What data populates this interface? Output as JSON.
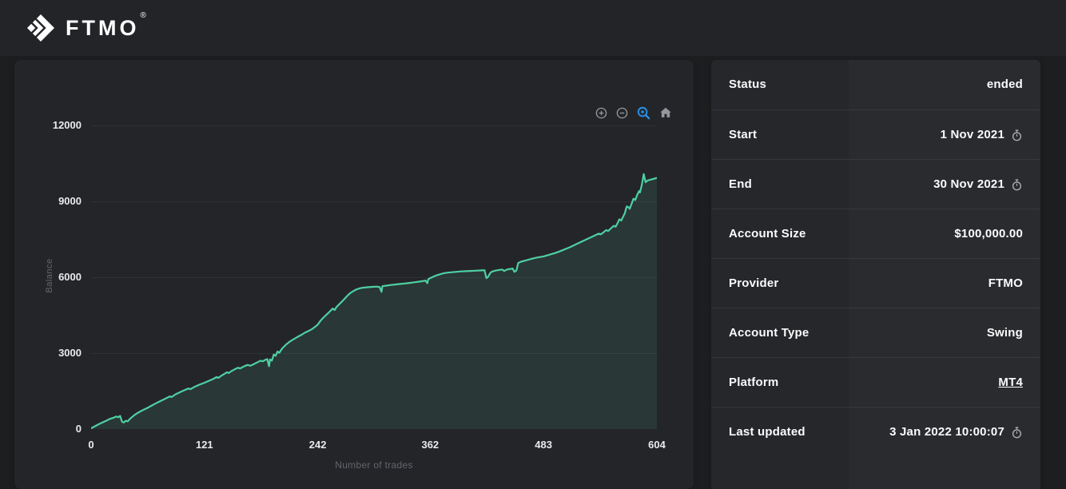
{
  "header": {
    "logo_text": "FTMO",
    "trademark": "®"
  },
  "colors": {
    "page_bg": "#1d1e20",
    "header_bg": "#232427",
    "card_bg": "#242529",
    "panel_label_bg": "#26272b",
    "panel_value_bg": "#2a2b2f",
    "line": "#4ed0a2",
    "fill": "rgba(79,209,165,0.11)",
    "active_tool_blue": "#2a97f3",
    "muted_text": "#63666b"
  },
  "chart": {
    "toolbar": {
      "icons": [
        {
          "name": "zoom-in-icon",
          "active": false
        },
        {
          "name": "zoom-out-icon",
          "active": false
        },
        {
          "name": "selection-zoom-icon",
          "active": true
        },
        {
          "name": "home-icon",
          "active": false
        }
      ]
    }
  },
  "chart_data": {
    "type": "area",
    "title": "",
    "xlabel": "Number of trades",
    "ylabel": "Balance",
    "xlim": [
      0,
      604
    ],
    "ylim": [
      0,
      12000
    ],
    "x_ticks": [
      0,
      121,
      242,
      362,
      483,
      604
    ],
    "y_ticks": [
      0,
      3000,
      6000,
      9000,
      12000
    ],
    "grid": "horizontal",
    "legend": "none",
    "series": [
      {
        "name": "Balance",
        "x": [
          0,
          4,
          8,
          12,
          16,
          20,
          24,
          27,
          29,
          31,
          33,
          35,
          37,
          39,
          42,
          46,
          50,
          55,
          60,
          65,
          70,
          75,
          80,
          84,
          86,
          90,
          95,
          100,
          104,
          106,
          110,
          115,
          120,
          125,
          130,
          134,
          136,
          139,
          142,
          145,
          147,
          150,
          154,
          157,
          159,
          163,
          167,
          170,
          174,
          178,
          181,
          183,
          186,
          188,
          190,
          191,
          193,
          195,
          197,
          199,
          201,
          204,
          208,
          212,
          216,
          220,
          224,
          228,
          232,
          236,
          240,
          242,
          245,
          248,
          252,
          255,
          258,
          260,
          262,
          265,
          268,
          271,
          274,
          277,
          280,
          283,
          286,
          290,
          295,
          300,
          305,
          308,
          310,
          311,
          315,
          320,
          325,
          330,
          335,
          340,
          345,
          350,
          354,
          357,
          359,
          360,
          362,
          365,
          368,
          372,
          376,
          380,
          385,
          390,
          395,
          400,
          405,
          410,
          415,
          420,
          422,
          424,
          426,
          428,
          432,
          436,
          439,
          441,
          444,
          447,
          450,
          452,
          454,
          456,
          459,
          463,
          467,
          471,
          475,
          479,
          483,
          487,
          491,
          495,
          499,
          503,
          507,
          511,
          515,
          519,
          523,
          527,
          531,
          535,
          539,
          542,
          544,
          547,
          550,
          552,
          555,
          558,
          560,
          562,
          564,
          566,
          568,
          570,
          571,
          572,
          574,
          575,
          577,
          579,
          581,
          583,
          585,
          586,
          588,
          590,
          591,
          592,
          594,
          597,
          600,
          604
        ],
        "y": [
          30,
          110,
          190,
          260,
          330,
          400,
          450,
          500,
          465,
          520,
          295,
          260,
          330,
          305,
          420,
          545,
          645,
          745,
          835,
          935,
          1035,
          1125,
          1215,
          1290,
          1265,
          1370,
          1460,
          1545,
          1605,
          1575,
          1660,
          1745,
          1815,
          1895,
          1975,
          2055,
          2025,
          2105,
          2175,
          2245,
          2215,
          2295,
          2375,
          2425,
          2395,
          2475,
          2535,
          2505,
          2575,
          2645,
          2705,
          2675,
          2735,
          2765,
          2485,
          2755,
          2705,
          2945,
          2895,
          3065,
          3015,
          3185,
          3335,
          3455,
          3545,
          3635,
          3715,
          3805,
          3875,
          3955,
          4065,
          4135,
          4285,
          4405,
          4545,
          4655,
          4765,
          4705,
          4825,
          4935,
          5045,
          5165,
          5285,
          5385,
          5455,
          5515,
          5555,
          5585,
          5605,
          5620,
          5630,
          5615,
          5425,
          5645,
          5670,
          5695,
          5715,
          5735,
          5755,
          5775,
          5800,
          5825,
          5850,
          5870,
          5765,
          5925,
          5965,
          6015,
          6065,
          6115,
          6155,
          6180,
          6200,
          6215,
          6230,
          6240,
          6250,
          6260,
          6270,
          6280,
          5965,
          6025,
          6165,
          6225,
          6265,
          6290,
          6305,
          6245,
          6305,
          6325,
          6345,
          6215,
          6265,
          6565,
          6615,
          6655,
          6695,
          6735,
          6770,
          6800,
          6825,
          6865,
          6910,
          6955,
          7005,
          7065,
          7125,
          7185,
          7255,
          7325,
          7395,
          7465,
          7535,
          7605,
          7675,
          7725,
          7695,
          7775,
          7865,
          7825,
          7935,
          8035,
          7995,
          8140,
          8290,
          8245,
          8395,
          8545,
          8700,
          8800,
          8760,
          8705,
          8905,
          9105,
          9055,
          9255,
          9405,
          9355,
          9655,
          10080,
          9905,
          9755,
          9825,
          9855,
          9885,
          9925
        ]
      }
    ]
  },
  "panel": {
    "rows": [
      {
        "key": "status",
        "label": "Status",
        "value": "ended",
        "icon": null,
        "link": false
      },
      {
        "key": "start",
        "label": "Start",
        "value": "1 Nov 2021",
        "icon": "stopwatch-icon",
        "link": false
      },
      {
        "key": "end",
        "label": "End",
        "value": "30 Nov 2021",
        "icon": "stopwatch-icon",
        "link": false
      },
      {
        "key": "account-size",
        "label": "Account Size",
        "value": "$100,000.00",
        "icon": null,
        "link": false
      },
      {
        "key": "provider",
        "label": "Provider",
        "value": "FTMO",
        "icon": null,
        "link": false
      },
      {
        "key": "account-type",
        "label": "Account Type",
        "value": "Swing",
        "icon": null,
        "link": false
      },
      {
        "key": "platform",
        "label": "Platform",
        "value": "MT4",
        "icon": null,
        "link": true
      },
      {
        "key": "last-updated",
        "label": "Last updated",
        "value": "3 Jan 2022 10:00:07",
        "icon": "stopwatch-icon",
        "link": false
      }
    ]
  }
}
